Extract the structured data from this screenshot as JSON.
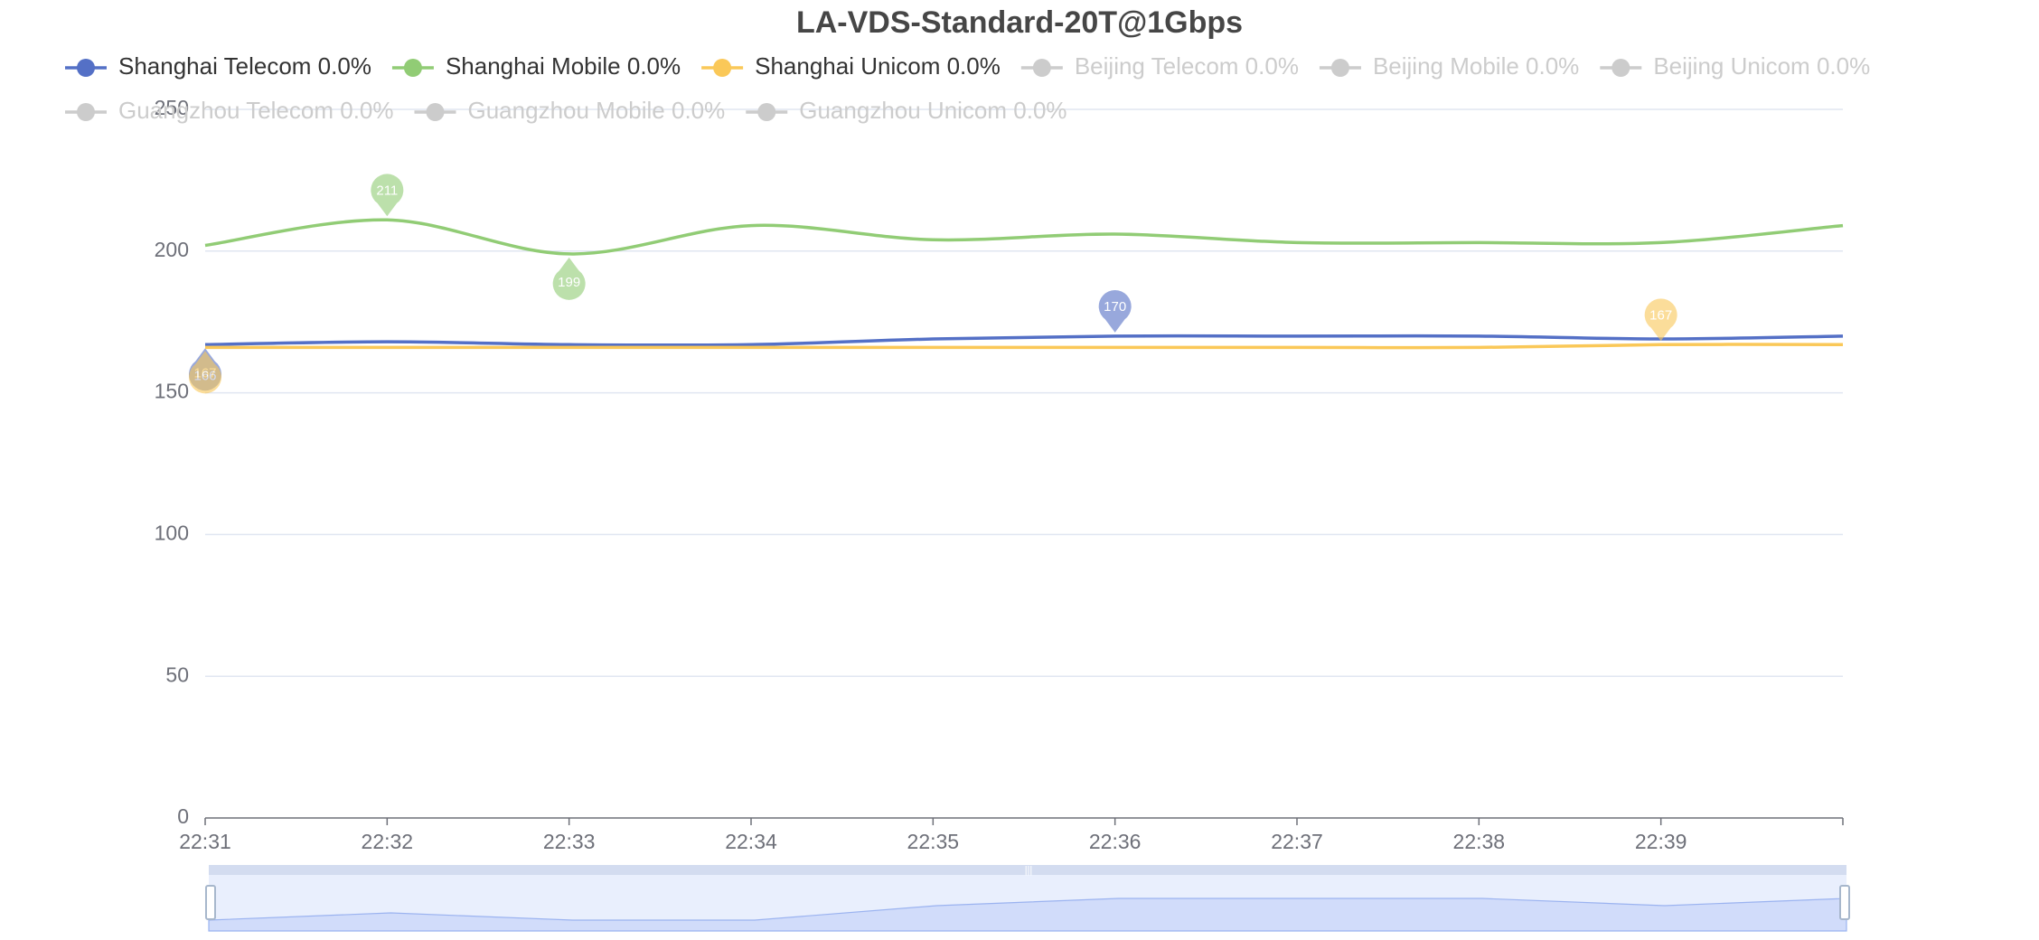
{
  "chart_data": {
    "type": "line",
    "title": "LA-VDS-Standard-20T@1Gbps",
    "categories": [
      "22:31",
      "22:32",
      "22:33",
      "22:34",
      "22:35",
      "22:36",
      "22:37",
      "22:38",
      "22:39",
      null
    ],
    "ylim": [
      0,
      250
    ],
    "yticks": [
      0,
      50,
      100,
      150,
      200,
      250
    ],
    "grid": true,
    "smooth": true,
    "series": [
      {
        "name": "Shanghai Telecom 0.0%",
        "color": "#5470c6",
        "values": [
          167,
          168,
          167,
          167,
          169,
          170,
          170,
          170,
          169,
          170
        ],
        "max": 170,
        "min": 167
      },
      {
        "name": "Shanghai Mobile 0.0%",
        "color": "#91cc75",
        "values": [
          202,
          211,
          199,
          209,
          204,
          206,
          203,
          203,
          203,
          209
        ],
        "max": 211,
        "min": 199
      },
      {
        "name": "Shanghai Unicom 0.0%",
        "color": "#fac858",
        "values": [
          166,
          166,
          166,
          166,
          166,
          166,
          166,
          166,
          167,
          167
        ],
        "max": 167,
        "min": 166
      },
      {
        "name": "Beijing Telecom 0.0%",
        "color": "#cccccc",
        "hidden": true
      },
      {
        "name": "Beijing Mobile 0.0%",
        "color": "#cccccc",
        "hidden": true
      },
      {
        "name": "Beijing Unicom 0.0%",
        "color": "#cccccc",
        "hidden": true
      },
      {
        "name": "Guangzhou Telecom 0.0%",
        "color": "#cccccc",
        "hidden": true
      },
      {
        "name": "Guangzhou Mobile 0.0%",
        "color": "#cccccc",
        "hidden": true
      },
      {
        "name": "Guangzhou Unicom 0.0%",
        "color": "#cccccc",
        "hidden": true
      }
    ]
  }
}
